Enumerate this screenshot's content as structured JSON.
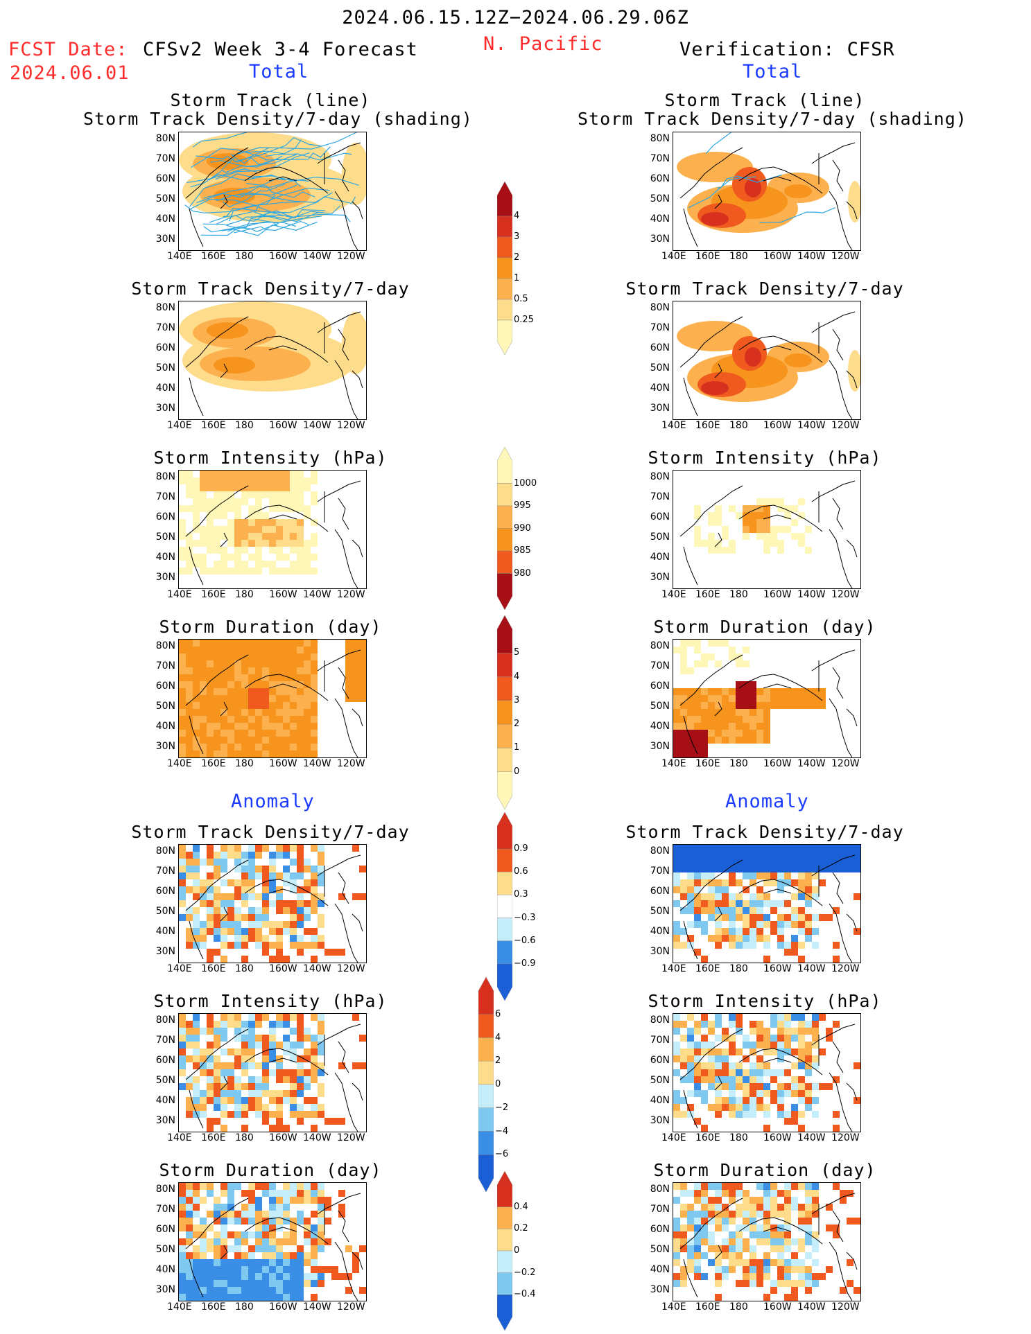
{
  "header": {
    "date_range": "2024.06.15.12Z−2024.06.29.06Z",
    "fcst_label": "FCST Date:",
    "fcst_date": "2024.06.01",
    "forecast_title": "CFSv2 Week 3-4 Forecast",
    "region": "N. Pacific",
    "verification_title": "Verification: CFSR",
    "total_left": "Total",
    "total_right": "Total",
    "anomaly_left": "Anomaly",
    "anomaly_right": "Anomaly"
  },
  "panel_titles": {
    "storm_track_line": "Storm Track (line)",
    "storm_track_density_shading": "Storm Track Density/7-day (shading)",
    "storm_track_density": "Storm Track Density/7-day",
    "storm_intensity": "Storm Intensity (hPa)",
    "storm_duration": "Storm Duration (day)"
  },
  "axes": {
    "lat_labels": [
      "80N",
      "70N",
      "60N",
      "50N",
      "40N",
      "30N"
    ],
    "lon_labels": [
      "140E",
      "160E",
      "180",
      "160W",
      "140W",
      "120W"
    ]
  },
  "colorbars": {
    "density_total": [
      "4",
      "3",
      "2",
      "1",
      "0.5",
      "0.25"
    ],
    "intensity_total": [
      "1000",
      "995",
      "990",
      "985",
      "980"
    ],
    "duration_total": [
      "5",
      "4",
      "3",
      "2",
      "1",
      "0"
    ],
    "density_anom": [
      "0.9",
      "0.6",
      "0.3",
      "−0.3",
      "−0.6",
      "−0.9"
    ],
    "intensity_anom": [
      "6",
      "4",
      "2",
      "0",
      "−2",
      "−4",
      "−6"
    ],
    "duration_anom": [
      "0.4",
      "0.2",
      "0",
      "−0.2",
      "−0.4"
    ]
  },
  "colors": {
    "c1": "#fff7b8",
    "c2": "#fddc8c",
    "c3": "#fdb14e",
    "c4": "#f7941d",
    "c5": "#f05a1e",
    "c6": "#d7301f",
    "c7": "#a50f15",
    "b1": "#c6eefa",
    "b2": "#7fc9f0",
    "b3": "#3a8ee6",
    "b4": "#1a5fd6",
    "track": "#2fa6e0"
  }
}
